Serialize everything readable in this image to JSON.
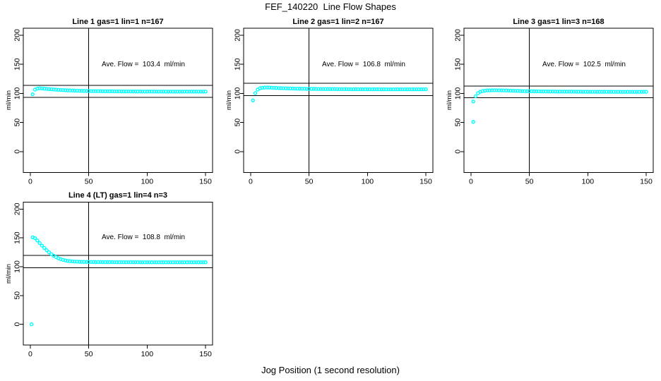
{
  "page": {
    "title": "FEF_140220  Line Flow Shapes",
    "xlabel": "Jog Position (1 second resolution)",
    "background_color": "#ffffff",
    "text_color": "#000000",
    "marker_color": "#00ffff"
  },
  "chart_data": [
    {
      "type": "scatter",
      "title": "Line 1 gas=1 lin=1 n=167",
      "ylabel": "ml/min",
      "annotation": "Ave. Flow =  103.4  ml/min",
      "ave_flow_ml_min": 103.4,
      "n": 167,
      "xlim": [
        -6,
        156
      ],
      "ylim": [
        -36,
        212
      ],
      "x_ticks": [
        0,
        50,
        100,
        150
      ],
      "y_ticks": [
        0,
        50,
        100,
        150,
        200
      ],
      "vline_x": 50,
      "hlines": [
        113.7,
        93.1
      ],
      "grid": false,
      "marker_color": "#00ffff",
      "points": [
        [
          2,
          98.5
        ],
        [
          4,
          106.5
        ],
        [
          6,
          108.3
        ],
        [
          8,
          108.8
        ],
        [
          10,
          108.5
        ],
        [
          12,
          108.1
        ],
        [
          14,
          107.7
        ],
        [
          16,
          107.3
        ],
        [
          18,
          107.0
        ],
        [
          20,
          106.7
        ],
        [
          22,
          106.4
        ],
        [
          24,
          106.1
        ],
        [
          26,
          105.9
        ],
        [
          28,
          105.6
        ],
        [
          30,
          105.4
        ],
        [
          32,
          105.2
        ],
        [
          34,
          105.0
        ],
        [
          36,
          104.9
        ],
        [
          38,
          104.7
        ],
        [
          40,
          104.6
        ],
        [
          42,
          104.5
        ],
        [
          44,
          104.4
        ],
        [
          46,
          104.3
        ],
        [
          48,
          104.2
        ],
        [
          50,
          104.1
        ],
        [
          52,
          104.0
        ],
        [
          54,
          103.9
        ],
        [
          56,
          103.9
        ],
        [
          58,
          103.8
        ],
        [
          60,
          103.8
        ],
        [
          62,
          103.7
        ],
        [
          64,
          103.7
        ],
        [
          66,
          103.6
        ],
        [
          68,
          103.6
        ],
        [
          70,
          103.6
        ],
        [
          72,
          103.5
        ],
        [
          74,
          103.5
        ],
        [
          76,
          103.5
        ],
        [
          78,
          103.4
        ],
        [
          80,
          103.4
        ],
        [
          82,
          103.4
        ],
        [
          84,
          103.4
        ],
        [
          86,
          103.3
        ],
        [
          88,
          103.3
        ],
        [
          90,
          103.3
        ],
        [
          92,
          103.3
        ],
        [
          94,
          103.3
        ],
        [
          96,
          103.2
        ],
        [
          98,
          103.2
        ],
        [
          100,
          103.2
        ],
        [
          102,
          103.2
        ],
        [
          104,
          103.2
        ],
        [
          106,
          103.2
        ],
        [
          108,
          103.1
        ],
        [
          110,
          103.1
        ],
        [
          112,
          103.1
        ],
        [
          114,
          103.1
        ],
        [
          116,
          103.1
        ],
        [
          118,
          103.1
        ],
        [
          120,
          103.1
        ],
        [
          122,
          103.1
        ],
        [
          124,
          103.0
        ],
        [
          126,
          103.0
        ],
        [
          128,
          103.0
        ],
        [
          130,
          103.0
        ],
        [
          132,
          103.0
        ],
        [
          134,
          103.0
        ],
        [
          136,
          103.0
        ],
        [
          138,
          103.0
        ],
        [
          140,
          103.0
        ],
        [
          142,
          103.0
        ],
        [
          144,
          103.1
        ],
        [
          146,
          103.1
        ],
        [
          148,
          103.1
        ],
        [
          150,
          103.1
        ]
      ]
    },
    {
      "type": "scatter",
      "title": "Line 2 gas=1 lin=2 n=167",
      "ylabel": "ml/min",
      "annotation": "Ave. Flow =  106.8  ml/min",
      "ave_flow_ml_min": 106.8,
      "n": 167,
      "xlim": [
        -6,
        156
      ],
      "ylim": [
        -36,
        212
      ],
      "x_ticks": [
        0,
        50,
        100,
        150
      ],
      "y_ticks": [
        0,
        50,
        100,
        150,
        200
      ],
      "vline_x": 50,
      "hlines": [
        117.5,
        96.1
      ],
      "grid": false,
      "marker_color": "#00ffff",
      "points": [
        [
          2,
          88.0
        ],
        [
          4,
          100.5
        ],
        [
          6,
          106.5
        ],
        [
          8,
          108.8
        ],
        [
          10,
          109.6
        ],
        [
          12,
          110.0
        ],
        [
          14,
          110.1
        ],
        [
          16,
          110.0
        ],
        [
          18,
          109.8
        ],
        [
          20,
          109.6
        ],
        [
          22,
          109.4
        ],
        [
          24,
          109.2
        ],
        [
          26,
          109.0
        ],
        [
          28,
          108.9
        ],
        [
          30,
          108.7
        ],
        [
          32,
          108.6
        ],
        [
          34,
          108.4
        ],
        [
          36,
          108.3
        ],
        [
          38,
          108.2
        ],
        [
          40,
          108.1
        ],
        [
          42,
          108.0
        ],
        [
          44,
          107.9
        ],
        [
          46,
          107.9
        ],
        [
          48,
          107.8
        ],
        [
          50,
          107.8
        ],
        [
          52,
          107.7
        ],
        [
          54,
          107.7
        ],
        [
          56,
          107.6
        ],
        [
          58,
          107.6
        ],
        [
          60,
          107.5
        ],
        [
          62,
          107.5
        ],
        [
          64,
          107.5
        ],
        [
          66,
          107.4
        ],
        [
          68,
          107.4
        ],
        [
          70,
          107.4
        ],
        [
          72,
          107.4
        ],
        [
          74,
          107.3
        ],
        [
          76,
          107.3
        ],
        [
          78,
          107.3
        ],
        [
          80,
          107.3
        ],
        [
          82,
          107.3
        ],
        [
          84,
          107.2
        ],
        [
          86,
          107.2
        ],
        [
          88,
          107.2
        ],
        [
          90,
          107.2
        ],
        [
          92,
          107.2
        ],
        [
          94,
          107.2
        ],
        [
          96,
          107.1
        ],
        [
          98,
          107.1
        ],
        [
          100,
          107.1
        ],
        [
          102,
          107.1
        ],
        [
          104,
          107.1
        ],
        [
          106,
          107.1
        ],
        [
          108,
          107.1
        ],
        [
          110,
          107.0
        ],
        [
          112,
          107.0
        ],
        [
          114,
          107.0
        ],
        [
          116,
          107.0
        ],
        [
          118,
          107.0
        ],
        [
          120,
          107.0
        ],
        [
          122,
          107.0
        ],
        [
          124,
          107.0
        ],
        [
          126,
          107.0
        ],
        [
          128,
          107.0
        ],
        [
          130,
          107.0
        ],
        [
          132,
          107.0
        ],
        [
          134,
          107.0
        ],
        [
          136,
          107.0
        ],
        [
          138,
          107.0
        ],
        [
          140,
          107.0
        ],
        [
          142,
          107.0
        ],
        [
          144,
          107.0
        ],
        [
          146,
          107.0
        ],
        [
          148,
          107.1
        ],
        [
          150,
          107.1
        ]
      ]
    },
    {
      "type": "scatter",
      "title": "Line 3 gas=1 lin=3 n=168",
      "ylabel": "ml/min",
      "annotation": "Ave. Flow =  102.5  ml/min",
      "ave_flow_ml_min": 102.5,
      "n": 168,
      "xlim": [
        -6,
        156
      ],
      "ylim": [
        -36,
        212
      ],
      "x_ticks": [
        0,
        50,
        100,
        150
      ],
      "y_ticks": [
        0,
        50,
        100,
        150,
        200
      ],
      "vline_x": 50,
      "hlines": [
        112.8,
        92.3
      ],
      "grid": false,
      "marker_color": "#00ffff",
      "points": [
        [
          2,
          51.0
        ],
        [
          2,
          86.0
        ],
        [
          4,
          95.0
        ],
        [
          6,
          100.5
        ],
        [
          8,
          102.8
        ],
        [
          10,
          104.0
        ],
        [
          12,
          104.6
        ],
        [
          14,
          105.0
        ],
        [
          16,
          105.2
        ],
        [
          18,
          105.3
        ],
        [
          20,
          105.4
        ],
        [
          22,
          105.4
        ],
        [
          24,
          105.3
        ],
        [
          26,
          105.2
        ],
        [
          28,
          105.1
        ],
        [
          30,
          105.0
        ],
        [
          32,
          104.8
        ],
        [
          34,
          104.7
        ],
        [
          36,
          104.5
        ],
        [
          38,
          104.4
        ],
        [
          40,
          104.3
        ],
        [
          42,
          104.1
        ],
        [
          44,
          104.0
        ],
        [
          46,
          103.9
        ],
        [
          48,
          103.8
        ],
        [
          50,
          103.7
        ],
        [
          52,
          103.7
        ],
        [
          54,
          103.6
        ],
        [
          56,
          103.5
        ],
        [
          58,
          103.5
        ],
        [
          60,
          103.4
        ],
        [
          62,
          103.4
        ],
        [
          64,
          103.3
        ],
        [
          66,
          103.3
        ],
        [
          68,
          103.2
        ],
        [
          70,
          103.2
        ],
        [
          72,
          103.2
        ],
        [
          74,
          103.1
        ],
        [
          76,
          103.1
        ],
        [
          78,
          103.1
        ],
        [
          80,
          103.0
        ],
        [
          82,
          103.0
        ],
        [
          84,
          103.0
        ],
        [
          86,
          103.0
        ],
        [
          88,
          102.9
        ],
        [
          90,
          102.9
        ],
        [
          92,
          102.9
        ],
        [
          94,
          102.9
        ],
        [
          96,
          102.8
        ],
        [
          98,
          102.8
        ],
        [
          100,
          102.8
        ],
        [
          102,
          102.8
        ],
        [
          104,
          102.8
        ],
        [
          106,
          102.8
        ],
        [
          108,
          102.7
        ],
        [
          110,
          102.7
        ],
        [
          112,
          102.7
        ],
        [
          114,
          102.7
        ],
        [
          116,
          102.7
        ],
        [
          118,
          102.7
        ],
        [
          120,
          102.7
        ],
        [
          122,
          102.6
        ],
        [
          124,
          102.6
        ],
        [
          126,
          102.6
        ],
        [
          128,
          102.6
        ],
        [
          130,
          102.6
        ],
        [
          132,
          102.6
        ],
        [
          134,
          102.6
        ],
        [
          136,
          102.6
        ],
        [
          138,
          102.6
        ],
        [
          140,
          102.6
        ],
        [
          142,
          102.6
        ],
        [
          144,
          102.6
        ],
        [
          146,
          102.7
        ],
        [
          148,
          102.7
        ],
        [
          150,
          102.7
        ]
      ]
    },
    {
      "type": "scatter",
      "title": "Line 4 (LT) gas=1 lin=4 n=3",
      "ylabel": "ml/min",
      "annotation": "Ave. Flow =  108.8  ml/min",
      "ave_flow_ml_min": 108.8,
      "n": 3,
      "xlim": [
        -6,
        156
      ],
      "ylim": [
        -36,
        212
      ],
      "x_ticks": [
        0,
        50,
        100,
        150
      ],
      "y_ticks": [
        0,
        50,
        100,
        150,
        200
      ],
      "vline_x": 50,
      "hlines": [
        119.7,
        97.9
      ],
      "grid": false,
      "marker_color": "#00ffff",
      "points": [
        [
          1,
          0.0
        ],
        [
          2,
          151.0
        ],
        [
          4,
          149.5
        ],
        [
          6,
          145.5
        ],
        [
          8,
          141.0
        ],
        [
          10,
          136.5
        ],
        [
          12,
          132.5
        ],
        [
          14,
          128.5
        ],
        [
          16,
          125.0
        ],
        [
          18,
          121.8
        ],
        [
          20,
          119.0
        ],
        [
          22,
          116.6
        ],
        [
          24,
          114.6
        ],
        [
          26,
          113.0
        ],
        [
          28,
          111.8
        ],
        [
          30,
          110.8
        ],
        [
          32,
          110.1
        ],
        [
          34,
          109.6
        ],
        [
          36,
          109.2
        ],
        [
          38,
          108.9
        ],
        [
          40,
          108.7
        ],
        [
          42,
          108.5
        ],
        [
          44,
          108.4
        ],
        [
          46,
          108.3
        ],
        [
          48,
          108.2
        ],
        [
          50,
          108.2
        ],
        [
          52,
          108.1
        ],
        [
          54,
          108.1
        ],
        [
          56,
          108.0
        ],
        [
          58,
          108.0
        ],
        [
          60,
          108.0
        ],
        [
          62,
          107.9
        ],
        [
          64,
          107.9
        ],
        [
          66,
          107.9
        ],
        [
          68,
          107.9
        ],
        [
          70,
          107.9
        ],
        [
          72,
          107.8
        ],
        [
          74,
          107.8
        ],
        [
          76,
          107.8
        ],
        [
          78,
          107.8
        ],
        [
          80,
          107.8
        ],
        [
          82,
          107.8
        ],
        [
          84,
          107.8
        ],
        [
          86,
          107.8
        ],
        [
          88,
          107.8
        ],
        [
          90,
          107.8
        ],
        [
          92,
          107.8
        ],
        [
          94,
          107.7
        ],
        [
          96,
          107.7
        ],
        [
          98,
          107.7
        ],
        [
          100,
          107.7
        ],
        [
          102,
          107.7
        ],
        [
          104,
          107.7
        ],
        [
          106,
          107.7
        ],
        [
          108,
          107.7
        ],
        [
          110,
          107.7
        ],
        [
          112,
          107.7
        ],
        [
          114,
          107.7
        ],
        [
          116,
          107.7
        ],
        [
          118,
          107.7
        ],
        [
          120,
          107.7
        ],
        [
          122,
          107.7
        ],
        [
          124,
          107.7
        ],
        [
          126,
          107.7
        ],
        [
          128,
          107.7
        ],
        [
          130,
          107.7
        ],
        [
          132,
          107.7
        ],
        [
          134,
          107.7
        ],
        [
          136,
          107.7
        ],
        [
          138,
          107.7
        ],
        [
          140,
          107.7
        ],
        [
          142,
          107.7
        ],
        [
          144,
          107.7
        ],
        [
          146,
          107.7
        ],
        [
          148,
          107.7
        ],
        [
          150,
          107.7
        ]
      ]
    }
  ]
}
